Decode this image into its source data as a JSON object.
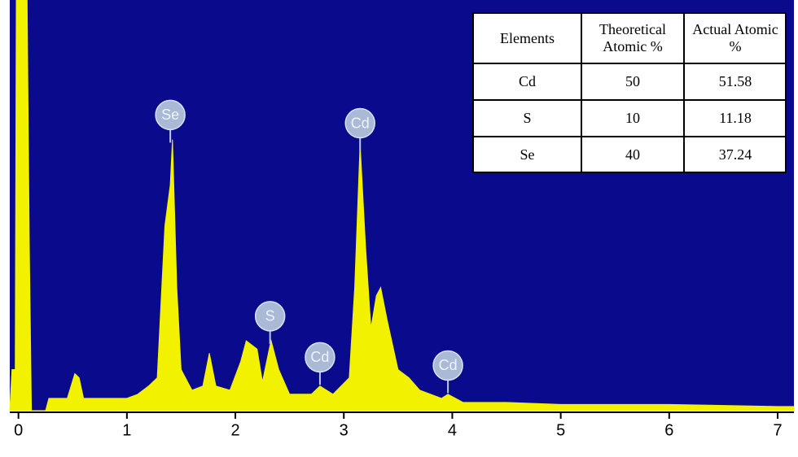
{
  "chart_data": {
    "type": "area",
    "x": [
      -0.08,
      -0.06,
      -0.03,
      -0.02,
      0.08,
      0.1,
      0.12,
      0.25,
      0.28,
      0.45,
      0.52,
      0.56,
      0.6,
      0.8,
      1.0,
      1.1,
      1.2,
      1.28,
      1.35,
      1.4,
      1.42,
      1.46,
      1.5,
      1.6,
      1.7,
      1.76,
      1.82,
      1.95,
      2.05,
      2.1,
      2.2,
      2.25,
      2.32,
      2.33,
      2.4,
      2.5,
      2.7,
      2.78,
      2.9,
      3.05,
      3.1,
      3.15,
      3.2,
      3.25,
      3.3,
      3.34,
      3.4,
      3.5,
      3.6,
      3.7,
      3.9,
      3.96,
      4.1,
      4.5,
      5,
      6,
      7,
      7.15
    ],
    "values": [
      0,
      10,
      10,
      100,
      100,
      40,
      0,
      0,
      3,
      3,
      9,
      8,
      3,
      3,
      3,
      4,
      6,
      8,
      45,
      55,
      66,
      30,
      10,
      5,
      6,
      14,
      6,
      5,
      12,
      17,
      15,
      7,
      16,
      17,
      10,
      4,
      4,
      6,
      4,
      8,
      30,
      65,
      40,
      20,
      28,
      30,
      22,
      10,
      8,
      5,
      3,
      4,
      2,
      2,
      1.5,
      1.5,
      1,
      1
    ],
    "color": "#f2f200",
    "background": "#0a0a8c",
    "xlim": [
      -0.08,
      7.15
    ],
    "ylim": [
      0,
      100
    ],
    "xticks": [
      0,
      1,
      2,
      3,
      4,
      5,
      6,
      7
    ],
    "annotations": [
      {
        "text": "Se",
        "x": 1.4,
        "y": 72
      },
      {
        "text": "S",
        "x": 2.32,
        "y": 23
      },
      {
        "text": "Cd",
        "x": 2.78,
        "y": 13
      },
      {
        "text": "Cd",
        "x": 3.15,
        "y": 70
      },
      {
        "text": "Cd",
        "x": 3.96,
        "y": 11
      }
    ],
    "table": {
      "header": [
        "Elements",
        "Theoretical Atomic %",
        "Actual Atomic %"
      ],
      "rows": [
        [
          "Cd",
          50,
          51.58
        ],
        [
          "S",
          10,
          11.18
        ],
        [
          "Se",
          40,
          37.24
        ]
      ]
    }
  }
}
